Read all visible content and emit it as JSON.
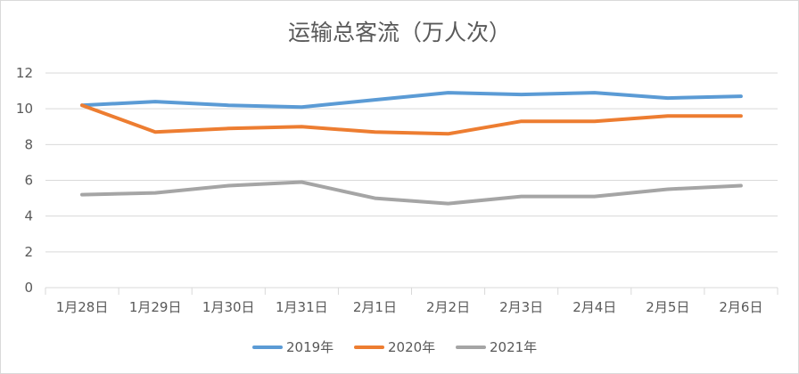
{
  "chart_data": {
    "type": "line",
    "title": "运输总客流（万人次）",
    "xlabel": "",
    "ylabel": "",
    "categories": [
      "1月28日",
      "1月29日",
      "1月30日",
      "1月31日",
      "2月1日",
      "2月2日",
      "2月3日",
      "2月4日",
      "2月5日",
      "2月6日"
    ],
    "ylim": [
      0,
      12
    ],
    "yticks": [
      0,
      2,
      4,
      6,
      8,
      10,
      12
    ],
    "grid": true,
    "legend": "bottom",
    "series": [
      {
        "name": "2019年",
        "color": "#5b9bd5",
        "values": [
          10.2,
          10.4,
          10.2,
          10.1,
          10.5,
          10.9,
          10.8,
          10.9,
          10.6,
          10.7
        ]
      },
      {
        "name": "2020年",
        "color": "#ed7d31",
        "values": [
          10.2,
          8.7,
          8.9,
          9.0,
          8.7,
          8.6,
          9.3,
          9.3,
          9.6,
          9.6
        ]
      },
      {
        "name": "2021年",
        "color": "#a5a5a5",
        "values": [
          5.2,
          5.3,
          5.7,
          5.9,
          5.0,
          4.7,
          5.1,
          5.1,
          5.5,
          5.7
        ]
      }
    ]
  }
}
